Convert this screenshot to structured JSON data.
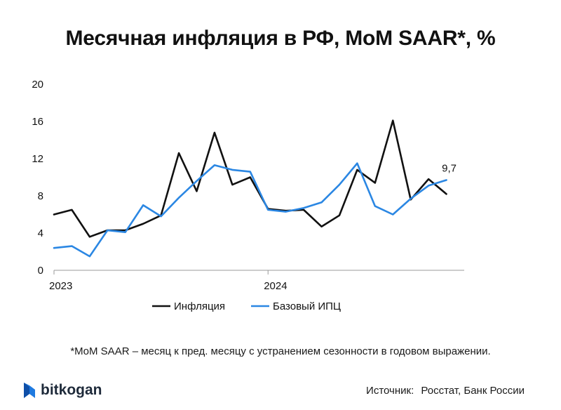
{
  "title": "Месячная инфляция в РФ, MoM SAAR*, %",
  "footnote": "*MoM SAAR – месяц к пред. месяцу с устранением сезонности в годовом выражении.",
  "source": {
    "label": "Источник:",
    "value": "Росстат, Банк России"
  },
  "brand": {
    "name": "bitkogan",
    "color": "#1f7ae0"
  },
  "chart_data": {
    "type": "line",
    "x": [
      "2023-01",
      "2023-02",
      "2023-03",
      "2023-04",
      "2023-05",
      "2023-06",
      "2023-07",
      "2023-08",
      "2023-09",
      "2023-10",
      "2023-11",
      "2023-12",
      "2024-01",
      "2024-02",
      "2024-03",
      "2024-04",
      "2024-05",
      "2024-06",
      "2024-07",
      "2024-08",
      "2024-09",
      "2024-10",
      "2024-11",
      "2024-12"
    ],
    "x_tick_labels": [
      "2023",
      "2024"
    ],
    "y_ticks": [
      0,
      4,
      8,
      12,
      16,
      20
    ],
    "ylim": [
      0,
      20
    ],
    "series": [
      {
        "name": "Инфляция",
        "color": "#111111",
        "values": [
          6.0,
          6.5,
          3.6,
          4.3,
          4.3,
          5.0,
          5.9,
          12.6,
          8.5,
          14.8,
          9.2,
          10.0,
          6.6,
          6.4,
          6.5,
          4.7,
          5.9,
          10.8,
          9.4,
          16.1,
          7.6,
          9.8,
          8.2,
          null
        ]
      },
      {
        "name": "Базовый ИПЦ",
        "color": "#2b87e3",
        "values": [
          2.4,
          2.6,
          1.5,
          4.3,
          4.1,
          7.0,
          5.8,
          7.8,
          9.6,
          11.3,
          10.8,
          10.6,
          6.5,
          6.3,
          6.7,
          7.3,
          9.2,
          11.5,
          6.9,
          6.0,
          7.7,
          9.1,
          9.7,
          null
        ]
      }
    ],
    "annotation": {
      "text": "9,7",
      "series": "Базовый ИПЦ",
      "index": 22
    },
    "grid": false,
    "legend_position": "bottom-center"
  }
}
